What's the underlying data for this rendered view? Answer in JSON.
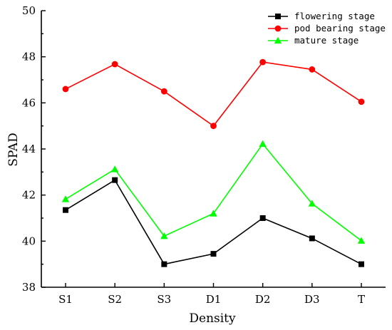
{
  "chart_data": {
    "type": "line",
    "xlabel": "Density",
    "ylabel": "SPAD",
    "categories": [
      "S1",
      "S2",
      "S3",
      "D1",
      "D2",
      "D3",
      "T"
    ],
    "ylim": [
      38,
      50
    ],
    "yticks": [
      38,
      40,
      42,
      44,
      46,
      48,
      50
    ],
    "grid": false,
    "legend_position": "top-right",
    "series": [
      {
        "name": "flowering stage",
        "color": "#000000",
        "marker": "square",
        "values": [
          41.35,
          42.65,
          39.0,
          39.45,
          41.0,
          40.12,
          39.0
        ]
      },
      {
        "name": "pod bearing stage",
        "color": "#ff0000",
        "marker": "circle",
        "values": [
          46.6,
          47.68,
          46.5,
          45.0,
          47.77,
          47.45,
          46.05
        ]
      },
      {
        "name": "mature stage",
        "color": "#00ff00",
        "marker": "triangle",
        "values": [
          41.82,
          43.12,
          40.22,
          41.2,
          44.22,
          41.63,
          40.02
        ]
      }
    ]
  }
}
